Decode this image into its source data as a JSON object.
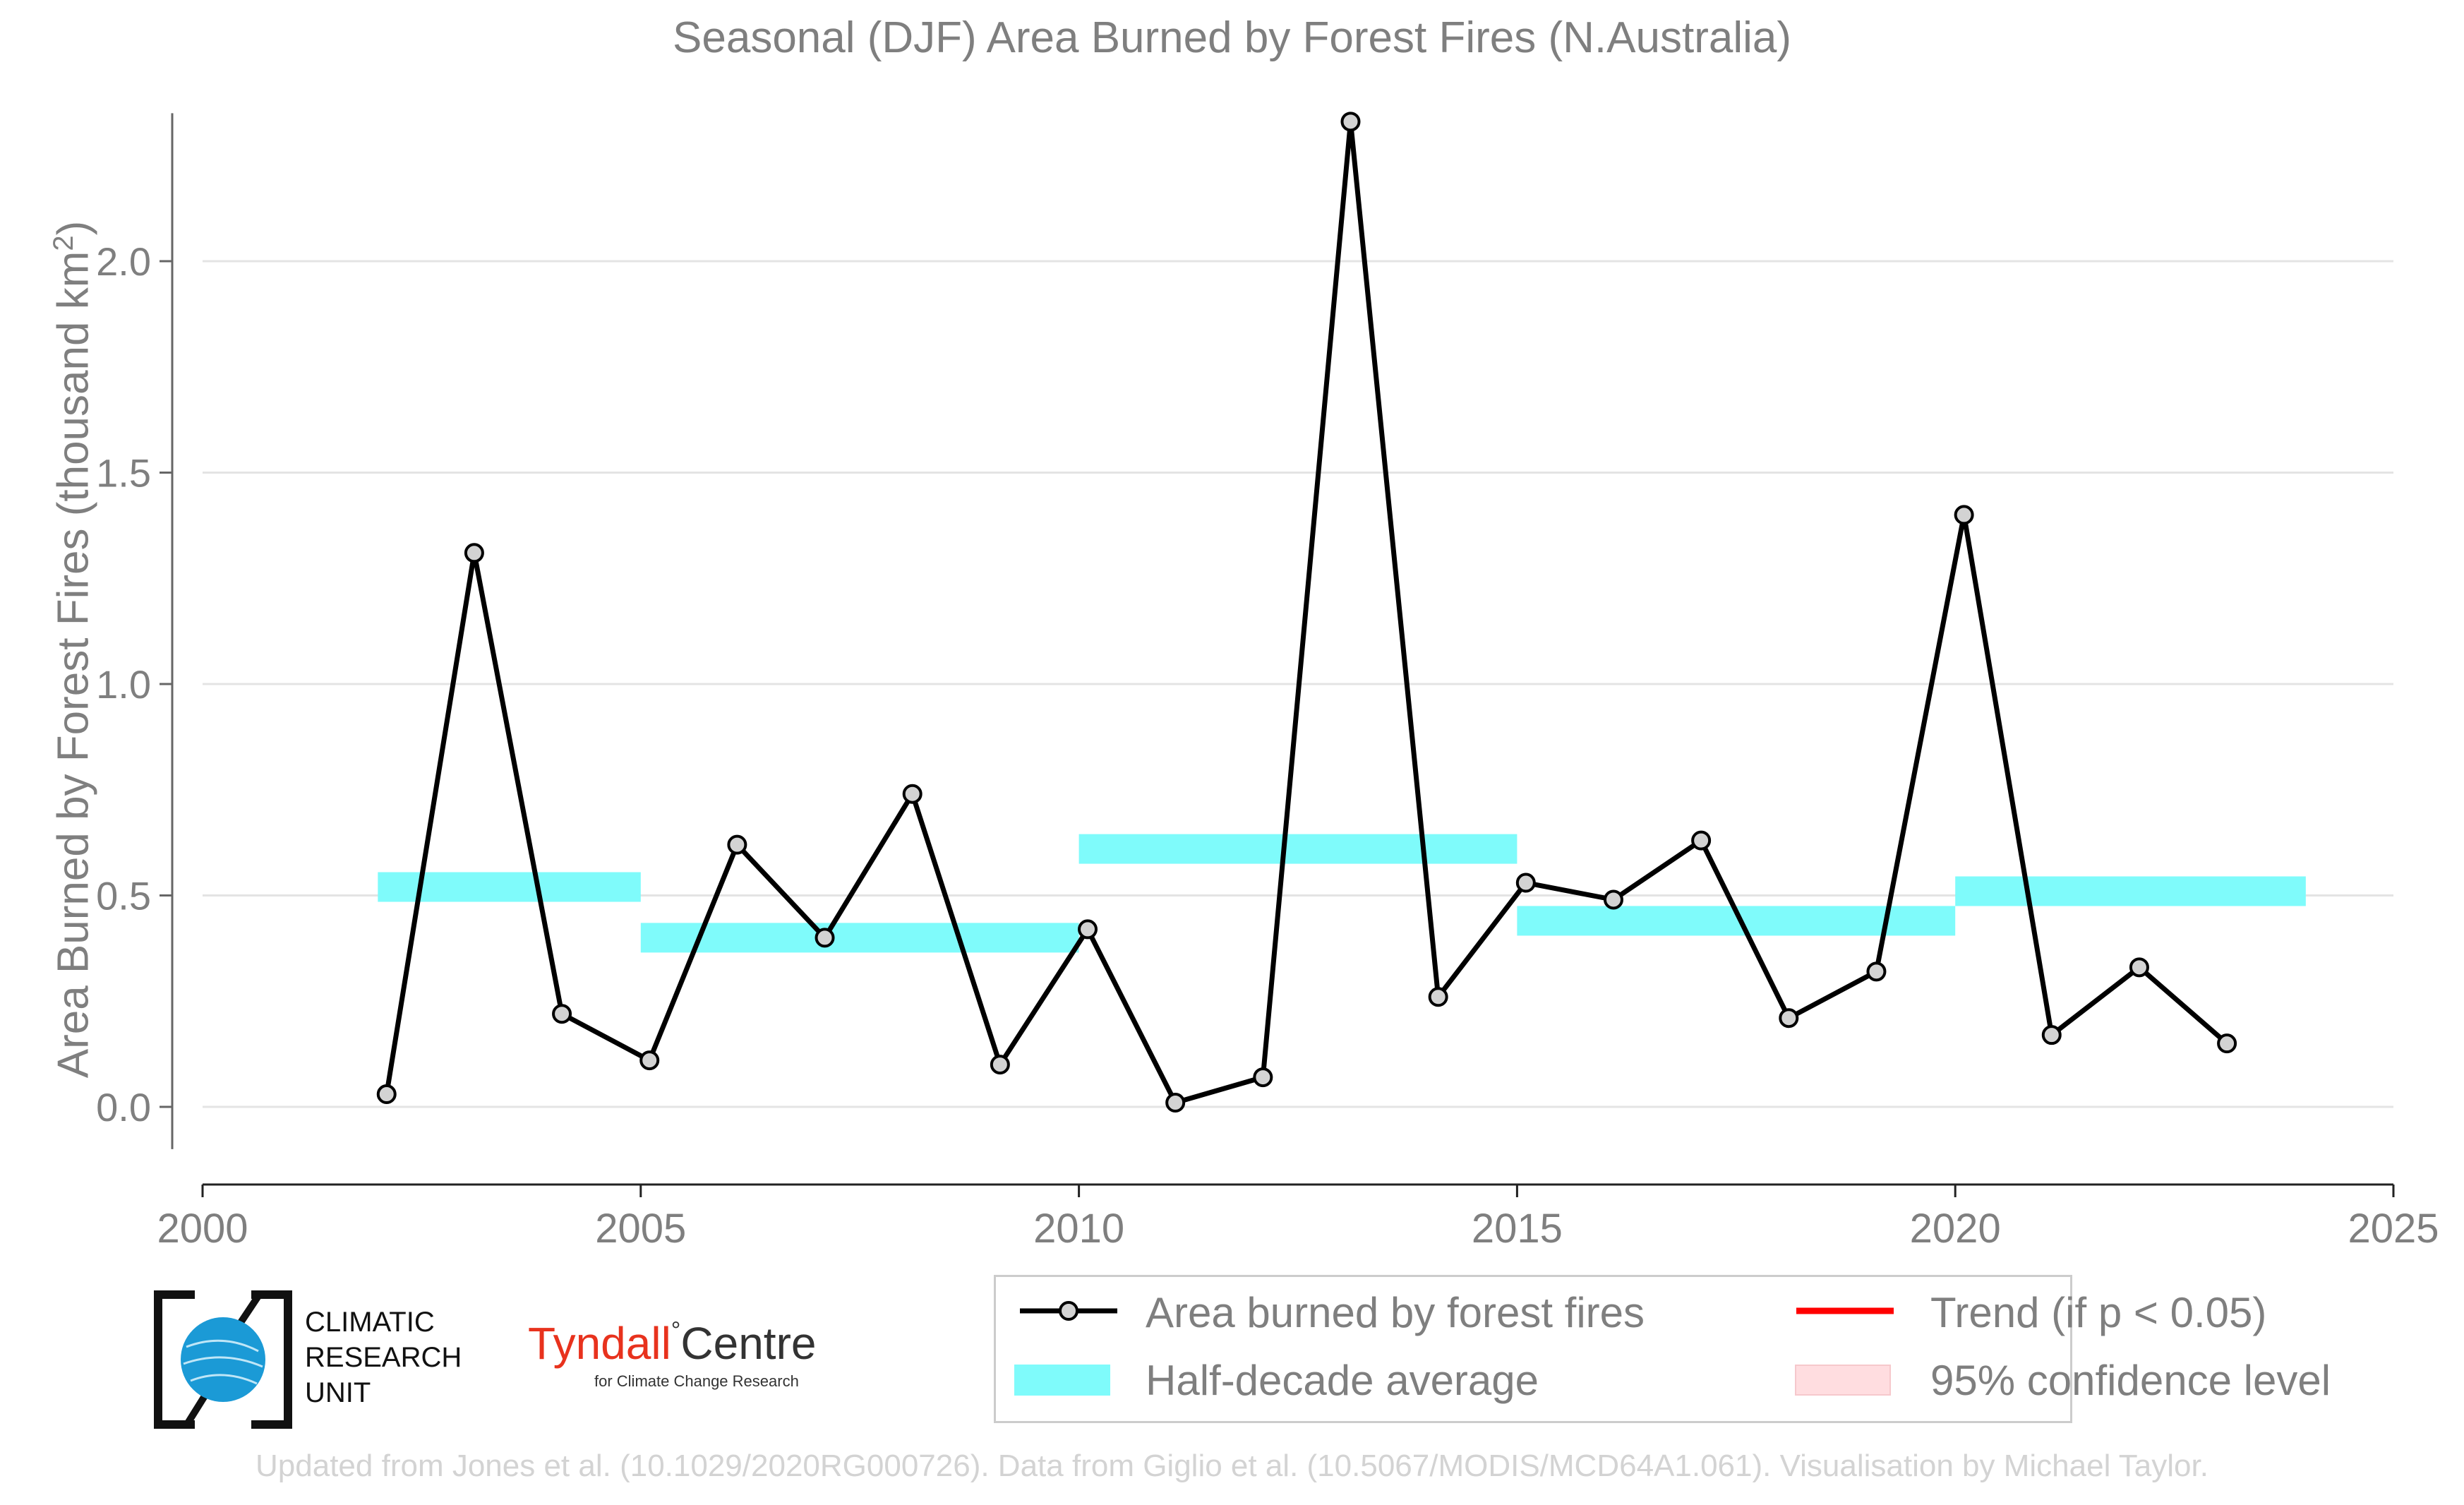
{
  "chart_data": {
    "type": "line",
    "title": "Seasonal (DJF) Area Burned by Forest Fires (N.Australia)",
    "ylabel_main": "Area Burned by Forest Fires (thousand km",
    "ylabel_sup": "2",
    "ylabel_end": ")",
    "xlim": [
      2000,
      2025
    ],
    "ylim": [
      -0.1,
      2.35
    ],
    "xticks": [
      2000,
      2005,
      2010,
      2015,
      2020,
      2025
    ],
    "xtick_labels": [
      "2000",
      "2005",
      "2010",
      "2015",
      "2020",
      "2025"
    ],
    "yticks": [
      0.0,
      0.5,
      1.0,
      1.5,
      2.0
    ],
    "ytick_labels": [
      "0.0",
      "0.5",
      "1.0",
      "1.5",
      "2.0"
    ],
    "grid": "horizontal",
    "series": [
      {
        "name": "Area burned by forest fires",
        "kind": "line-markers",
        "color": "#000000",
        "marker_fill": "#d3d3d3",
        "x": [
          2002,
          2003,
          2004,
          2005,
          2006,
          2007,
          2008,
          2009,
          2010,
          2011,
          2012,
          2013,
          2014,
          2015,
          2016,
          2017,
          2018,
          2019,
          2020,
          2021,
          2022,
          2023
        ],
        "values": [
          0.03,
          1.31,
          0.22,
          0.11,
          0.62,
          0.4,
          0.74,
          0.1,
          0.42,
          0.01,
          0.07,
          2.33,
          0.26,
          0.53,
          0.49,
          0.63,
          0.21,
          0.32,
          1.4,
          0.17,
          0.33,
          0.15
        ]
      },
      {
        "name": "Half-decade average",
        "kind": "step-bars",
        "color": "#7ffbfb",
        "segments": [
          {
            "x0": 2002,
            "x1": 2005,
            "value": 0.52
          },
          {
            "x0": 2005,
            "x1": 2010,
            "value": 0.4
          },
          {
            "x0": 2010,
            "x1": 2015,
            "value": 0.61
          },
          {
            "x0": 2015,
            "x1": 2020,
            "value": 0.44
          },
          {
            "x0": 2020,
            "x1": 2024,
            "value": 0.51
          }
        ]
      }
    ],
    "legend": {
      "placement": "bottom-right",
      "entries": [
        {
          "label": "Area burned by forest fires",
          "symbol": "line-marker",
          "color": "#000000"
        },
        {
          "label": "Trend (if p < 0.05)",
          "symbol": "line",
          "color": "#ff0000"
        },
        {
          "label": "Half-decade average",
          "symbol": "patch",
          "color": "#7ffbfb"
        },
        {
          "label": "95% confidence level",
          "symbol": "patch",
          "color": "#ffdde0"
        }
      ]
    }
  },
  "logos": {
    "cru": {
      "line1": "CLIMATIC",
      "line2": "RESEARCH",
      "line3": "UNIT"
    },
    "tyndall": {
      "name": "Tyndall",
      "degree": "°",
      "centre": "Centre",
      "sub": "for Climate Change Research"
    }
  },
  "footer": "Updated from Jones et al. (10.1029/2020RG000726). Data from Giglio et al. (10.5067/MODIS/MCD64A1.061). Visualisation by Michael Taylor."
}
